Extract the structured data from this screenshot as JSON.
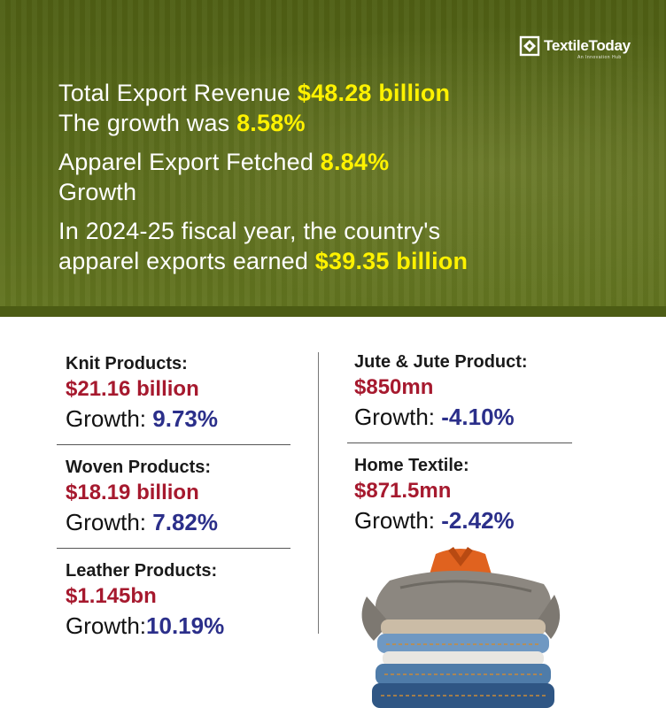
{
  "logo": {
    "name": "TextileToday",
    "tagline": "An Innovation Hub"
  },
  "hero": {
    "revenue_label": "Total Export Revenue",
    "revenue_value": "$48.28 billion",
    "growth_label": "The growth was",
    "growth_value": "8.58%",
    "apparel_label": "Apparel Export Fetched",
    "apparel_value": "8.84%",
    "apparel_suffix": "Growth",
    "fiscal_line1": "In 2024-25 fiscal year, the country's",
    "fiscal_line2_label": "apparel exports earned",
    "fiscal_value": "$39.35 billion"
  },
  "left_items": [
    {
      "title": "Knit Products:",
      "value": "$21.16 billion",
      "growth_label": "Growth:",
      "growth": "9.73%"
    },
    {
      "title": "Woven Products:",
      "value": "$18.19 billion",
      "growth_label": "Growth:",
      "growth": "7.82%"
    },
    {
      "title": "Leather Products:",
      "value": "$1.145bn",
      "growth_label": "Growth:",
      "growth": "10.19%"
    }
  ],
  "right_items": [
    {
      "title": "Jute & Jute Product:",
      "value": "$850mn",
      "growth_label": "Growth:",
      "growth": "-4.10%"
    },
    {
      "title": "Home Textile:",
      "value": "$871.5mn",
      "growth_label": "Growth:",
      "growth": "-2.42%"
    }
  ],
  "colors": {
    "hero_bg": "#58691a",
    "highlight": "#fff200",
    "value_red": "#a6192e",
    "growth_blue": "#2b2f8a"
  }
}
